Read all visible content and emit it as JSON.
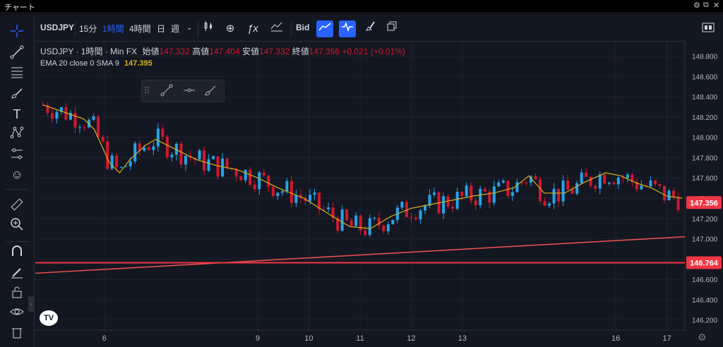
{
  "window": {
    "title": "チャート",
    "buttons": [
      "⚙",
      "⧉",
      "✕"
    ]
  },
  "toolbar": {
    "symbol": "USDJPY",
    "intervals": [
      "15分",
      "1時間",
      "4時間",
      "日",
      "週"
    ],
    "active_interval": "1時間",
    "dropdown_icon": "chevron-down-icon",
    "bid_label": "Bid",
    "icons": [
      "candles-icon",
      "add-compare-icon",
      "indicators-fx-icon",
      "templates-icon",
      "bid-label",
      "line-icon-active",
      "wave-icon-active",
      "brush-icon",
      "layout-icon"
    ]
  },
  "legend": {
    "title": "USDJPY · 1時間 · Min FX",
    "open_label": "始値",
    "open_value": "147.332",
    "high_label": "高値",
    "high_value": "147.404",
    "low_label": "安値",
    "low_value": "147.332",
    "close_label": "終値",
    "close_value": "147.356",
    "change": "+0.021 (+0.01%)",
    "indicator_label": "EMA 20 close 0 SMA 9",
    "indicator_value": "147.395"
  },
  "colors": {
    "background": "#131722",
    "grid": "#1e222d",
    "up": "#26a4e8",
    "down": "#d1182c",
    "ma": "#d4b11c",
    "hline": "#f23645",
    "trendline": "#ef5350",
    "accent": "#2962ff"
  },
  "chart_data": {
    "type": "candlestick",
    "symbol": "USDJPY",
    "interval": "1時間",
    "ylim": [
      146.1,
      148.95
    ],
    "y_ticks": [
      "148.800",
      "148.600",
      "148.400",
      "148.200",
      "148.000",
      "147.800",
      "147.600",
      "147.400",
      "147.200",
      "147.000",
      "146.800",
      "146.600",
      "146.400",
      "146.200"
    ],
    "x_ticks": [
      "6",
      "9",
      "10",
      "11",
      "12",
      "13",
      "16",
      "17"
    ],
    "x_range": [
      4.65,
      17.35
    ],
    "price_labels": [
      {
        "value": 147.356,
        "text": "147.356"
      },
      {
        "value": 146.764,
        "text": "146.764"
      }
    ],
    "horizontal_line": 146.764,
    "trendline": {
      "x1": 4.65,
      "y1": 146.66,
      "x2": 17.35,
      "y2": 147.02
    },
    "ma_series": [
      {
        "x": 4.8,
        "y": 148.32
      },
      {
        "x": 5.2,
        "y": 148.25
      },
      {
        "x": 5.6,
        "y": 148.18
      },
      {
        "x": 5.8,
        "y": 148.08
      },
      {
        "x": 6.1,
        "y": 147.75
      },
      {
        "x": 6.3,
        "y": 147.65
      },
      {
        "x": 6.5,
        "y": 147.78
      },
      {
        "x": 6.8,
        "y": 147.92
      },
      {
        "x": 7.0,
        "y": 147.98
      },
      {
        "x": 7.4,
        "y": 147.88
      },
      {
        "x": 7.8,
        "y": 147.78
      },
      {
        "x": 8.2,
        "y": 147.72
      },
      {
        "x": 8.6,
        "y": 147.68
      },
      {
        "x": 9.0,
        "y": 147.6
      },
      {
        "x": 9.4,
        "y": 147.5
      },
      {
        "x": 9.9,
        "y": 147.4
      },
      {
        "x": 10.4,
        "y": 147.24
      },
      {
        "x": 10.8,
        "y": 147.12
      },
      {
        "x": 11.2,
        "y": 147.1
      },
      {
        "x": 11.6,
        "y": 147.22
      },
      {
        "x": 12.0,
        "y": 147.3
      },
      {
        "x": 12.4,
        "y": 147.34
      },
      {
        "x": 12.8,
        "y": 147.38
      },
      {
        "x": 13.2,
        "y": 147.42
      },
      {
        "x": 13.6,
        "y": 147.45
      },
      {
        "x": 14.0,
        "y": 147.5
      },
      {
        "x": 14.3,
        "y": 147.62
      },
      {
        "x": 14.6,
        "y": 147.45
      },
      {
        "x": 15.0,
        "y": 147.45
      },
      {
        "x": 15.4,
        "y": 147.56
      },
      {
        "x": 15.8,
        "y": 147.65
      },
      {
        "x": 16.1,
        "y": 147.62
      },
      {
        "x": 16.4,
        "y": 147.55
      },
      {
        "x": 16.7,
        "y": 147.5
      },
      {
        "x": 17.0,
        "y": 147.42
      },
      {
        "x": 17.3,
        "y": 147.4
      }
    ]
  },
  "settings_icon": "gear-icon",
  "logo_text": "TV"
}
